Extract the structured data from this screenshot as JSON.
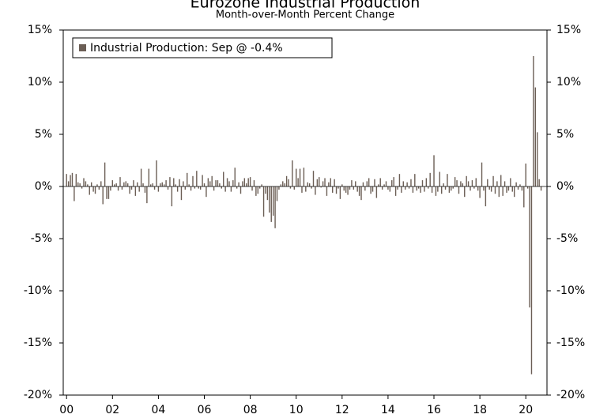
{
  "chart_data": {
    "type": "bar",
    "title": "Eurozone Industrial Production",
    "subtitle": "Month-over-Month Percent Change",
    "categories": [
      "00",
      null,
      null,
      null,
      null,
      null,
      null,
      null,
      null,
      null,
      null,
      null,
      null,
      null,
      null,
      null,
      null,
      null,
      null,
      null,
      null,
      null,
      null,
      null,
      "02",
      null,
      null,
      null,
      null,
      null,
      null,
      null,
      null,
      null,
      null,
      null,
      null,
      null,
      null,
      null,
      null,
      null,
      null,
      null,
      null,
      null,
      null,
      null,
      "04",
      null,
      null,
      null,
      null,
      null,
      null,
      null,
      null,
      null,
      null,
      null,
      null,
      null,
      null,
      null,
      null,
      null,
      null,
      null,
      null,
      null,
      null,
      null,
      "06",
      null,
      null,
      null,
      null,
      null,
      null,
      null,
      null,
      null,
      null,
      null,
      null,
      null,
      null,
      null,
      null,
      null,
      null,
      null,
      null,
      null,
      null,
      null,
      "08",
      null,
      null,
      null,
      null,
      null,
      null,
      null,
      null,
      null,
      null,
      null,
      null,
      null,
      null,
      null,
      null,
      null,
      null,
      null,
      null,
      null,
      null,
      null,
      "10",
      null,
      null,
      null,
      null,
      null,
      null,
      null,
      null,
      null,
      null,
      null,
      null,
      null,
      null,
      null,
      null,
      null,
      null,
      null,
      null,
      null,
      null,
      null,
      "12",
      null,
      null,
      null,
      null,
      null,
      null,
      null,
      null,
      null,
      null,
      null,
      null,
      null,
      null,
      null,
      null,
      null,
      null,
      null,
      null,
      null,
      null,
      null,
      "14",
      null,
      null,
      null,
      null,
      null,
      null,
      null,
      null,
      null,
      null,
      null,
      null,
      null,
      null,
      null,
      null,
      null,
      null,
      null,
      null,
      null,
      null,
      null,
      "16",
      null,
      null,
      null,
      null,
      null,
      null,
      null,
      null,
      null,
      null,
      null,
      null,
      null,
      null,
      null,
      null,
      null,
      null,
      null,
      null,
      null,
      null,
      null,
      "18",
      null,
      null,
      null,
      null,
      null,
      null,
      null,
      null,
      null,
      null,
      null,
      null,
      null,
      null,
      null,
      null,
      null,
      null,
      null,
      null,
      null,
      null,
      null,
      "20",
      null,
      null,
      null,
      null,
      null,
      null,
      null,
      null
    ],
    "series": [
      {
        "name": "Industrial Production: Sep @ -0.4%",
        "color": "#6b5e55",
        "values": [
          1.2,
          0.5,
          1.1,
          1.3,
          -1.4,
          1.2,
          0.4,
          0.3,
          -0.2,
          0.8,
          0.5,
          0.2,
          -0.8,
          0.4,
          -0.5,
          -0.7,
          0.2,
          -0.3,
          0.5,
          -1.7,
          2.3,
          -1.2,
          -1.2,
          -0.4,
          0.6,
          0.2,
          0.3,
          -0.4,
          0.9,
          -0.3,
          0.4,
          0.5,
          0.3,
          -0.7,
          -0.3,
          0.6,
          -0.9,
          0.4,
          -0.5,
          1.7,
          0.3,
          -0.6,
          -1.6,
          1.7,
          0.2,
          0.3,
          -0.3,
          2.5,
          -0.5,
          0.3,
          0.4,
          0.2,
          0.6,
          -0.3,
          0.9,
          -1.9,
          0.8,
          0.2,
          -0.5,
          0.7,
          -1.3,
          0.5,
          -0.3,
          1.3,
          0.2,
          -0.4,
          1.0,
          -0.2,
          1.5,
          -0.2,
          -0.3,
          1.1,
          0.3,
          -1.0,
          0.8,
          0.5,
          1.0,
          -0.4,
          0.6,
          0.6,
          0.3,
          -0.2,
          1.4,
          -0.5,
          0.8,
          0.5,
          -0.5,
          0.6,
          1.8,
          -0.2,
          0.4,
          -0.7,
          0.5,
          0.8,
          0.3,
          0.8,
          0.9,
          -0.4,
          0.6,
          -0.9,
          -0.7,
          -0.2,
          0.2,
          -2.9,
          -0.7,
          -1.3,
          -2.5,
          -3.4,
          -2.8,
          -4.0,
          -1.4,
          -0.3,
          0.2,
          0.5,
          0.3,
          1.0,
          0.7,
          -0.2,
          2.5,
          -0.3,
          1.7,
          0.8,
          1.7,
          -0.6,
          1.8,
          -0.5,
          0.4,
          0.3,
          -0.2,
          1.5,
          -0.8,
          0.7,
          0.9,
          -0.1,
          0.5,
          0.8,
          -0.9,
          0.4,
          0.8,
          -0.6,
          0.7,
          -0.7,
          -0.2,
          -1.2,
          0.2,
          -0.4,
          -0.6,
          -0.8,
          -0.3,
          0.6,
          -0.3,
          0.5,
          -0.5,
          -0.9,
          -1.3,
          0.4,
          -0.4,
          0.5,
          0.8,
          -0.7,
          -0.5,
          0.7,
          -1.1,
          0.2,
          0.8,
          -0.3,
          0.2,
          0.5,
          -0.3,
          -0.5,
          0.6,
          0.9,
          -0.9,
          -0.3,
          1.2,
          -0.6,
          0.5,
          -0.3,
          0.4,
          -0.2,
          0.7,
          -0.6,
          1.2,
          -0.4,
          -0.2,
          -0.6,
          0.6,
          -0.5,
          0.8,
          -0.2,
          1.3,
          -0.6,
          3.0,
          -0.9,
          -0.5,
          1.4,
          -0.7,
          0.3,
          -0.3,
          1.2,
          -0.6,
          -0.4,
          -0.2,
          0.9,
          0.6,
          -0.7,
          0.5,
          0.3,
          -1.0,
          1.0,
          0.5,
          -0.4,
          0.6,
          -0.2,
          0.8,
          -0.4,
          -1.1,
          2.3,
          -0.4,
          -1.9,
          0.7,
          -0.3,
          -0.5,
          1.0,
          -0.7,
          0.5,
          -1.0,
          1.1,
          -0.9,
          0.5,
          -0.6,
          -0.4,
          0.8,
          -0.5,
          -1.0,
          0.4,
          -0.3,
          0.2,
          -0.4,
          -2.0,
          2.2,
          -0.2,
          -11.6,
          -18.0,
          12.5,
          9.5,
          5.2,
          0.7,
          -0.4
        ]
      }
    ],
    "ylim": [
      -20,
      15
    ],
    "yticks": [
      {
        "value": -20,
        "label": "-20%"
      },
      {
        "value": -15,
        "label": "-15%"
      },
      {
        "value": -10,
        "label": "-10%"
      },
      {
        "value": -5,
        "label": "-5%"
      },
      {
        "value": 0,
        "label": "0%"
      },
      {
        "value": 5,
        "label": "5%"
      },
      {
        "value": 10,
        "label": "10%"
      },
      {
        "value": 15,
        "label": "15%"
      }
    ],
    "legend": "top-left"
  }
}
